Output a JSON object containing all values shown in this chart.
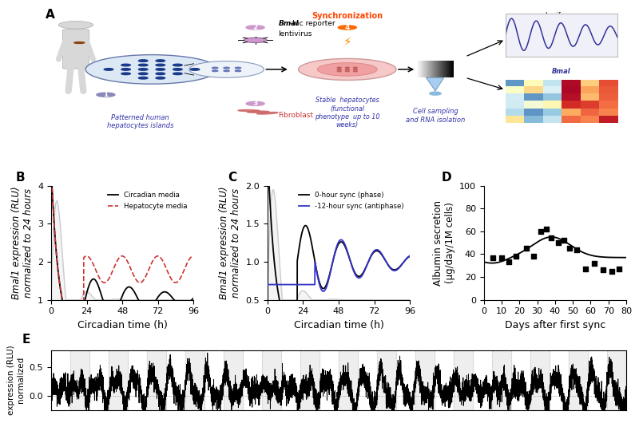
{
  "panel_B": {
    "xlabel": "Circadian time (h)",
    "ylabel": "Bmal1 expression (RLU)\nnormalized to 24 hours",
    "xlim": [
      0,
      96
    ],
    "ylim": [
      1,
      4
    ],
    "yticks": [
      1,
      2,
      3,
      4
    ],
    "xticks": [
      0,
      24,
      48,
      72,
      96
    ],
    "legend": [
      "Circadian media",
      "Hepatocyte media"
    ],
    "legend_colors": [
      "#000000",
      "#cc3333"
    ],
    "legend_styles": [
      "solid",
      "dashed"
    ]
  },
  "panel_C": {
    "xlabel": "Circadian time (h)",
    "ylabel": "Bmal1 expression (RLU)\nnormalized to 24 hours",
    "xlim": [
      0,
      96
    ],
    "ylim": [
      0.5,
      2.0
    ],
    "yticks": [
      0.5,
      1.0,
      1.5,
      2.0
    ],
    "xticks": [
      0,
      24,
      48,
      72,
      96
    ],
    "legend": [
      "0-hour sync (phase)",
      "-12-hour sync (antiphase)"
    ],
    "legend_colors": [
      "#000000",
      "#3333cc"
    ],
    "legend_styles": [
      "solid",
      "solid"
    ]
  },
  "panel_D": {
    "xlabel": "Days after first sync",
    "ylabel": "Albumin secretion\n(μg/day/1M cells)",
    "xlim": [
      0,
      80
    ],
    "ylim": [
      0,
      100
    ],
    "yticks": [
      0,
      20,
      40,
      60,
      80,
      100
    ],
    "xticks": [
      0,
      10,
      20,
      30,
      40,
      50,
      60,
      70,
      80
    ],
    "scatter_x": [
      5,
      10,
      14,
      18,
      24,
      28,
      32,
      35,
      38,
      42,
      45,
      48,
      52,
      57,
      62,
      67,
      72,
      76
    ],
    "scatter_y": [
      37,
      37,
      33,
      38,
      45,
      38,
      60,
      62,
      54,
      50,
      52,
      45,
      44,
      27,
      32,
      26,
      25,
      27
    ]
  },
  "panel_E": {
    "ylabel": "expression (RLU)\nnormalized",
    "yticks": [
      0.0,
      0.5
    ],
    "ylim": [
      -0.25,
      0.8
    ]
  },
  "bg_color": "#ffffff",
  "text_color": "#000000",
  "label_fontsize": 9,
  "tick_fontsize": 8,
  "panel_label_fontsize": 11
}
